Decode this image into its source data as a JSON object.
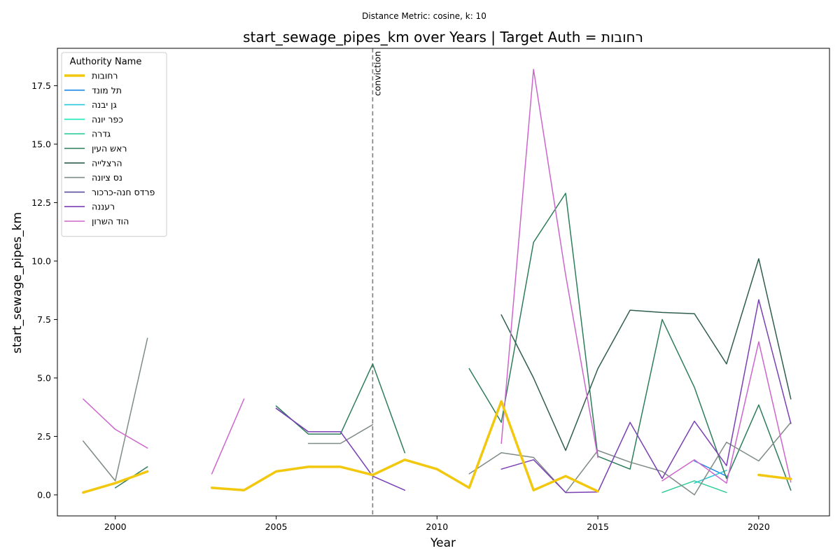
{
  "suptitle": "Distance Metric: cosine, k: 10",
  "chart_data": {
    "type": "line",
    "title": "start_sewage_pipes_km over Years | Target Auth = רחובות",
    "xlabel": "Year",
    "ylabel": "start_sewage_pipes_km",
    "xlim": [
      1998.2,
      2022.2
    ],
    "ylim": [
      -0.9,
      19.1
    ],
    "x_ticks": [
      2000,
      2005,
      2010,
      2015,
      2020
    ],
    "y_ticks": [
      0.0,
      2.5,
      5.0,
      7.5,
      10.0,
      12.5,
      15.0,
      17.5
    ],
    "x_tick_labels": [
      "2000",
      "2005",
      "2010",
      "2015",
      "2020"
    ],
    "y_tick_labels": [
      "0.0",
      "2.5",
      "5.0",
      "7.5",
      "10.0",
      "12.5",
      "15.0",
      "17.5"
    ],
    "grid": false,
    "legend": {
      "title": "Authority Name",
      "placement": "upper-left"
    },
    "annotations": [
      {
        "x": 2008,
        "label": "conviction",
        "style": "dashed-vertical",
        "color": "#808080"
      }
    ],
    "series": [
      {
        "name": "רחובות",
        "color": "#f2c80f",
        "width": 3.5,
        "target": true,
        "points": [
          [
            1999,
            0.1
          ],
          [
            2000,
            0.5
          ],
          [
            2001,
            1.0
          ],
          [
            2002,
            null
          ],
          [
            2003,
            0.3
          ],
          [
            2004,
            0.2
          ],
          [
            2005,
            1.0
          ],
          [
            2006,
            1.2
          ],
          [
            2007,
            1.2
          ],
          [
            2008,
            0.85
          ],
          [
            2009,
            1.5
          ],
          [
            2010,
            1.1
          ],
          [
            2011,
            0.3
          ],
          [
            2012,
            4.0
          ],
          [
            2013,
            0.2
          ],
          [
            2014,
            0.8
          ],
          [
            2015,
            0.15
          ],
          [
            2016,
            null
          ],
          [
            2017,
            null
          ],
          [
            2018,
            null
          ],
          [
            2019,
            null
          ],
          [
            2020,
            0.85
          ],
          [
            2021,
            0.68
          ]
        ]
      },
      {
        "name": "תל מונד",
        "color": "#1e88e5",
        "width": 1.5,
        "points": [
          [
            2018,
            1.45
          ],
          [
            2019,
            0.8
          ]
        ]
      },
      {
        "name": "גן יבנה",
        "color": "#26c6da",
        "width": 1.5,
        "points": [
          [
            2018,
            0.5
          ],
          [
            2019,
            1.05
          ]
        ]
      },
      {
        "name": "כפר יונה",
        "color": "#1de9b6",
        "width": 1.5,
        "points": [
          [
            2021,
            0.2
          ]
        ]
      },
      {
        "name": "גדרה",
        "color": "#2ecc9a",
        "width": 1.5,
        "points": [
          [
            2017,
            0.1
          ],
          [
            2018,
            0.6
          ],
          [
            2019,
            0.1
          ]
        ]
      },
      {
        "name": "ראש העין",
        "color": "#2e7d5b",
        "width": 1.5,
        "points": [
          [
            2000,
            0.3
          ],
          [
            2001,
            1.2
          ],
          [
            2002,
            null
          ],
          [
            2005,
            3.8
          ],
          [
            2006,
            2.6
          ],
          [
            2007,
            2.6
          ],
          [
            2008,
            5.6
          ],
          [
            2009,
            1.8
          ],
          [
            2010,
            null
          ],
          [
            2011,
            5.4
          ],
          [
            2012,
            3.1
          ],
          [
            2013,
            10.8
          ],
          [
            2014,
            12.9
          ],
          [
            2015,
            1.65
          ],
          [
            2016,
            1.1
          ],
          [
            2017,
            7.5
          ],
          [
            2018,
            4.6
          ],
          [
            2019,
            0.7
          ],
          [
            2020,
            3.85
          ],
          [
            2021,
            0.2
          ]
        ]
      },
      {
        "name": "הרצלייה",
        "color": "#2f5d4e",
        "width": 1.5,
        "points": [
          [
            2012,
            7.7
          ],
          [
            2013,
            5.0
          ],
          [
            2014,
            1.9
          ],
          [
            2015,
            5.4
          ],
          [
            2016,
            7.9
          ],
          [
            2017,
            7.8
          ],
          [
            2018,
            7.75
          ],
          [
            2019,
            5.6
          ],
          [
            2020,
            10.1
          ],
          [
            2021,
            4.1
          ]
        ]
      },
      {
        "name": "נס ציונה",
        "color": "#7f8c85",
        "width": 1.5,
        "points": [
          [
            1999,
            2.3
          ],
          [
            2000,
            0.6
          ],
          [
            2001,
            6.7
          ],
          [
            2002,
            null
          ],
          [
            2006,
            2.2
          ],
          [
            2007,
            2.2
          ],
          [
            2008,
            3.0
          ],
          [
            2009,
            null
          ],
          [
            2011,
            0.9
          ],
          [
            2012,
            1.8
          ],
          [
            2013,
            1.6
          ],
          [
            2014,
            0.1
          ],
          [
            2015,
            1.9
          ],
          [
            2016,
            1.4
          ],
          [
            2017,
            1.0
          ],
          [
            2018,
            0.0
          ],
          [
            2019,
            2.25
          ],
          [
            2020,
            1.45
          ],
          [
            2021,
            3.1
          ]
        ]
      },
      {
        "name": "פרדס חנה-כרכור",
        "color": "#5c4d9e",
        "width": 1.5,
        "points": [
          [
            2005,
            3.7
          ],
          [
            2006,
            2.7
          ]
        ]
      },
      {
        "name": "רעננה",
        "color": "#7b3fb5",
        "width": 1.5,
        "points": [
          [
            2005,
            3.7
          ],
          [
            2006,
            2.7
          ],
          [
            2007,
            2.7
          ],
          [
            2008,
            0.8
          ],
          [
            2009,
            0.2
          ],
          [
            2010,
            null
          ],
          [
            2012,
            1.1
          ],
          [
            2013,
            1.5
          ],
          [
            2014,
            0.1
          ],
          [
            2015,
            0.12
          ],
          [
            2016,
            3.1
          ],
          [
            2017,
            0.7
          ],
          [
            2018,
            3.15
          ],
          [
            2019,
            1.25
          ],
          [
            2020,
            8.35
          ],
          [
            2021,
            3.05
          ]
        ]
      },
      {
        "name": "הוד השרון",
        "color": "#cc66cc",
        "width": 1.5,
        "points": [
          [
            1999,
            4.1
          ],
          [
            2000,
            2.8
          ],
          [
            2001,
            2.0
          ],
          [
            2002,
            null
          ],
          [
            2003,
            0.9
          ],
          [
            2004,
            4.1
          ],
          [
            2005,
            null
          ],
          [
            2012,
            2.2
          ],
          [
            2013,
            18.2
          ],
          [
            2014,
            9.4
          ],
          [
            2015,
            1.6
          ],
          [
            2016,
            null
          ],
          [
            2017,
            0.6
          ],
          [
            2018,
            1.5
          ],
          [
            2019,
            0.5
          ],
          [
            2020,
            6.55
          ],
          [
            2021,
            0.55
          ]
        ]
      }
    ]
  }
}
